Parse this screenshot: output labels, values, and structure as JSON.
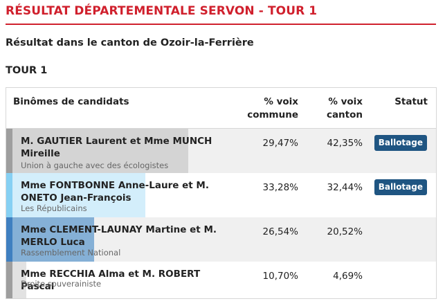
{
  "header": {
    "title": "RÉSULTAT DÉPARTEMENTALE SERVON - TOUR 1",
    "accent_color": "#d0202d"
  },
  "subtitle": "Résultat dans le canton de Ozoir-la-Ferrière",
  "tour_label": "TOUR 1",
  "table": {
    "columns": {
      "candidates": "Binômes de candidats",
      "commune": "% voix\ncommune",
      "canton": "% voix\ncanton",
      "status": "Statut"
    },
    "rows": [
      {
        "name": "M. GAUTIER Laurent et Mme MUNCH Mireille",
        "party": "Union à gauche avec des écologistes",
        "commune": "29,47%",
        "canton": "42,35%",
        "canton_share": 42.35,
        "status": "Ballotage",
        "bar_color": "#d4d4d4",
        "edge_color": "#9e9e9e"
      },
      {
        "name": "Mme FONTBONNE Anne-Laure et M. ONETO Jean-François",
        "party": "Les Républicains",
        "commune": "33,28%",
        "canton": "32,44%",
        "canton_share": 32.44,
        "status": "Ballotage",
        "bar_color": "#d3eefb",
        "edge_color": "#86d0f3"
      },
      {
        "name": "Mme CLEMENT-LAUNAY Martine et M. MERLO Luca",
        "party": "Rassemblement National",
        "commune": "26,54%",
        "canton": "20,52%",
        "canton_share": 20.52,
        "status": "",
        "bar_color": "#85b0d6",
        "edge_color": "#3f7fc0"
      },
      {
        "name": "Mme RECCHIA Alma et M. ROBERT Pascal",
        "party": "Droite souverainiste",
        "commune": "10,70%",
        "canton": "4,69%",
        "canton_share": 4.69,
        "status": "",
        "bar_color": "#e2e2e2",
        "edge_color": "#9e9e9e"
      }
    ],
    "badge_color": "#1f5582"
  }
}
